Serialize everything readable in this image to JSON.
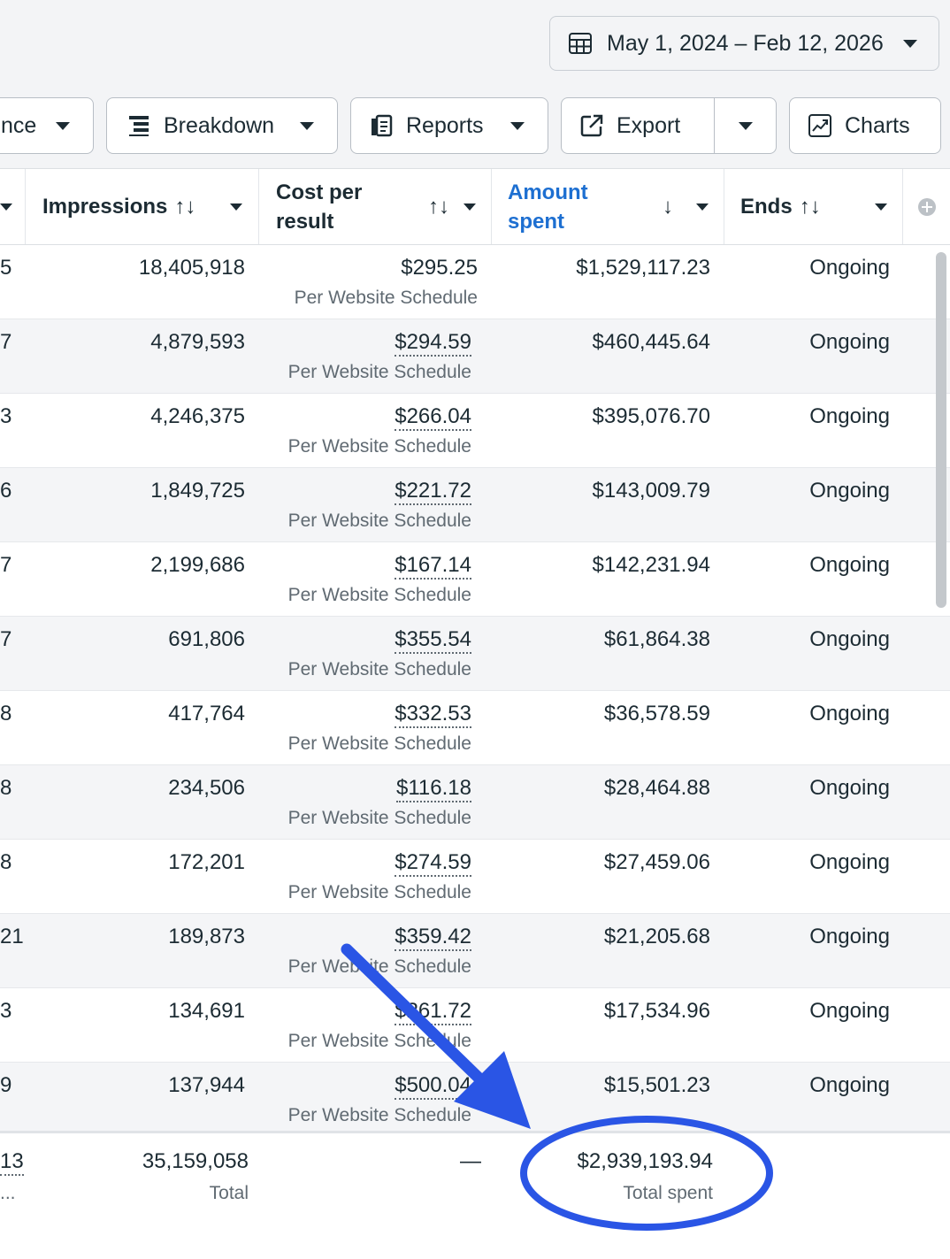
{
  "date_range": {
    "label": "May 1, 2024 – Feb 12, 2026",
    "icon": "calendar-icon"
  },
  "toolbar": {
    "performance_partial": "nce",
    "breakdown": "Breakdown",
    "reports": "Reports",
    "export": "Export",
    "charts": "Charts"
  },
  "columns": {
    "impressions": "Impressions",
    "cost_line1": "Cost per",
    "cost_line2": "result",
    "amount_line1": "Amount",
    "amount_line2": "spent",
    "ends": "Ends",
    "sort_both": "↑↓",
    "sort_down": "↓"
  },
  "rows": [
    {
      "left": "5",
      "impressions": "18,405,918",
      "cost": "$295.25",
      "cost_sub": "Per Website Schedule",
      "amount": "$1,529,117.23",
      "ends": "Ongoing"
    },
    {
      "left": "7",
      "impressions": "4,879,593",
      "cost": "$294.59",
      "cost_sub": "Per Website Schedule",
      "amount": "$460,445.64",
      "ends": "Ongoing"
    },
    {
      "left": "3",
      "impressions": "4,246,375",
      "cost": "$266.04",
      "cost_sub": "Per Website Schedule",
      "amount": "$395,076.70",
      "ends": "Ongoing"
    },
    {
      "left": "6",
      "impressions": "1,849,725",
      "cost": "$221.72",
      "cost_sub": "Per Website Schedule",
      "amount": "$143,009.79",
      "ends": "Ongoing"
    },
    {
      "left": "7",
      "impressions": "2,199,686",
      "cost": "$167.14",
      "cost_sub": "Per Website Schedule",
      "amount": "$142,231.94",
      "ends": "Ongoing"
    },
    {
      "left": "7",
      "impressions": "691,806",
      "cost": "$355.54",
      "cost_sub": "Per Website Schedule",
      "amount": "$61,864.38",
      "ends": "Ongoing"
    },
    {
      "left": "8",
      "impressions": "417,764",
      "cost": "$332.53",
      "cost_sub": "Per Website Schedule",
      "amount": "$36,578.59",
      "ends": "Ongoing"
    },
    {
      "left": "8",
      "impressions": "234,506",
      "cost": "$116.18",
      "cost_sub": "Per Website Schedule",
      "amount": "$28,464.88",
      "ends": "Ongoing"
    },
    {
      "left": "8",
      "impressions": "172,201",
      "cost": "$274.59",
      "cost_sub": "Per Website Schedule",
      "amount": "$27,459.06",
      "ends": "Ongoing"
    },
    {
      "left": "21",
      "impressions": "189,873",
      "cost": "$359.42",
      "cost_sub": "Per Website Schedule",
      "amount": "$21,205.68",
      "ends": "Ongoing"
    },
    {
      "left": "3",
      "impressions": "134,691",
      "cost": "$261.72",
      "cost_sub": "Per Website Schedule",
      "amount": "$17,534.96",
      "ends": "Ongoing"
    },
    {
      "left": "9",
      "impressions": "137,944",
      "cost": "$500.04",
      "cost_sub": "Per Website Schedule",
      "amount": "$15,501.23",
      "ends": "Ongoing"
    }
  ],
  "totals": {
    "left": "13",
    "left_sub": "...",
    "impressions": "35,159,058",
    "impressions_sub": "Total",
    "cost": "—",
    "amount": "$2,939,193.94",
    "amount_sub": "Total spent"
  },
  "colors": {
    "accent": "#1d6fd1",
    "annotation": "#2a55e5",
    "text": "#1c2b33",
    "muted": "#606a72"
  }
}
